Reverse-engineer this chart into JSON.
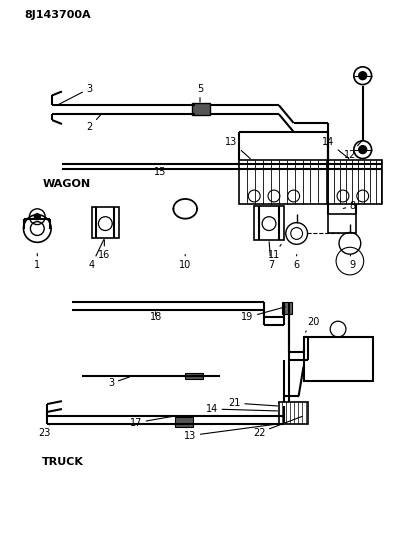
{
  "title_code": "8J143700A",
  "bg": "#ffffff",
  "lc": "#000000",
  "fig_w": 4.0,
  "fig_h": 5.33,
  "dpi": 100,
  "wagon_label": "WAGON",
  "truck_label": "TRUCK"
}
